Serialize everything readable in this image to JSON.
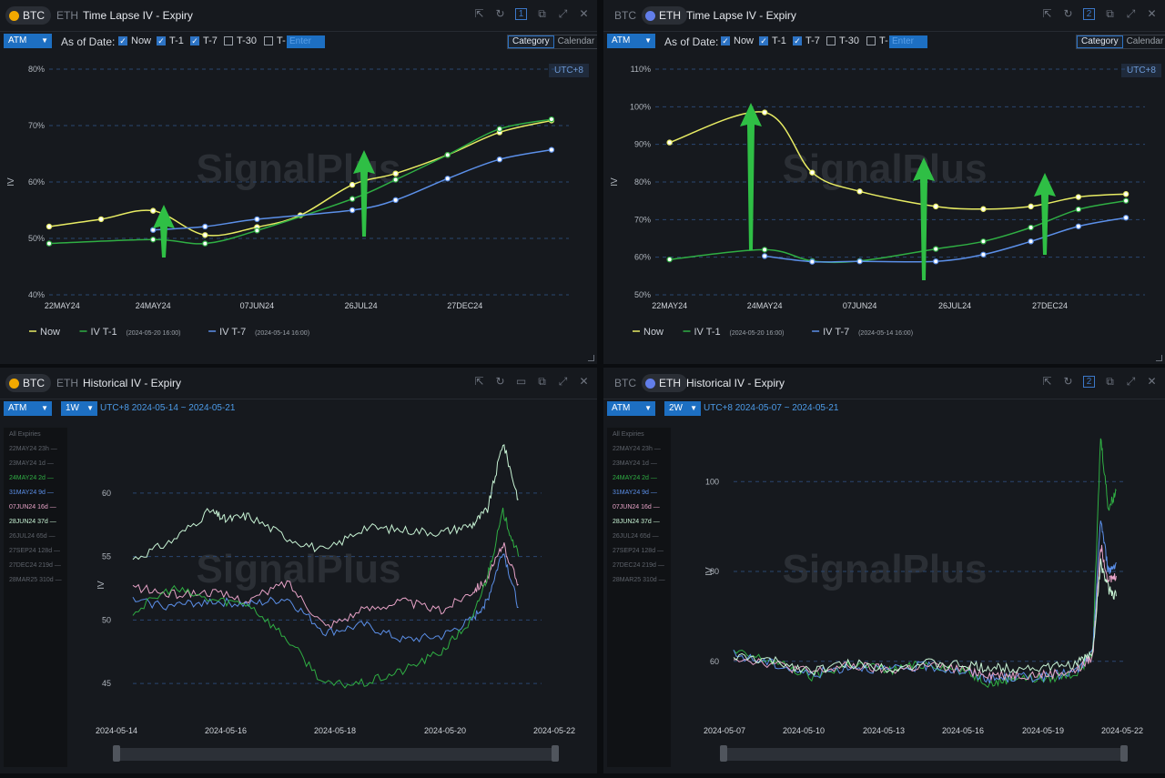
{
  "panels": [
    {
      "coins": [
        "BTC",
        "ETH"
      ],
      "active_coin": "BTC",
      "title": "Time Lapse IV - Expiry",
      "panel_number": "1",
      "selector": "ATM",
      "as_of_label": "As of Date:",
      "checkboxes": [
        {
          "label": "Now",
          "checked": true
        },
        {
          "label": "T-1",
          "checked": true
        },
        {
          "label": "T-7",
          "checked": true
        },
        {
          "label": "T-30",
          "checked": false
        },
        {
          "label": "T-",
          "checked": false
        }
      ],
      "date_placeholder": "Enter",
      "toggle": [
        "Category",
        "Calendar"
      ],
      "toggle_active": "Category",
      "timezone": "UTC+8",
      "watermark": "SignalPlus"
    },
    {
      "coins": [
        "BTC",
        "ETH"
      ],
      "active_coin": "ETH",
      "title": "Time Lapse IV - Expiry",
      "panel_number": "2",
      "selector": "ATM",
      "as_of_label": "As of Date:",
      "checkboxes": [
        {
          "label": "Now",
          "checked": true
        },
        {
          "label": "T-1",
          "checked": true
        },
        {
          "label": "T-7",
          "checked": true
        },
        {
          "label": "T-30",
          "checked": false
        },
        {
          "label": "T-",
          "checked": false
        }
      ],
      "date_placeholder": "Enter",
      "toggle": [
        "Category",
        "Calendar"
      ],
      "toggle_active": "Category",
      "timezone": "UTC+8",
      "watermark": "SignalPlus"
    },
    {
      "coins": [
        "BTC",
        "ETH"
      ],
      "active_coin": "BTC",
      "title": "Historical IV - Expiry",
      "selector": "ATM",
      "period": "1W",
      "range": "UTC+8 2024-05-14 ~ 2024-05-21",
      "expiry_header": "All Expiries",
      "expiries": [
        {
          "label": "22MAY24 23h",
          "color": "#5e636b"
        },
        {
          "label": "23MAY24 1d",
          "color": "#5e636b"
        },
        {
          "label": "24MAY24 2d",
          "color": "#2fae43"
        },
        {
          "label": "31MAY24 9d",
          "color": "#5b8fe8"
        },
        {
          "label": "07JUN24 16d",
          "color": "#e6a2c6"
        },
        {
          "label": "28JUN24 37d",
          "color": "#c7f3d4"
        },
        {
          "label": "26JUL24 65d",
          "color": "#5e636b"
        },
        {
          "label": "27SEP24 128d",
          "color": "#5e636b"
        },
        {
          "label": "27DEC24 219d",
          "color": "#5e636b"
        },
        {
          "label": "28MAR25 310d",
          "color": "#5e636b"
        }
      ],
      "watermark": "SignalPlus"
    },
    {
      "coins": [
        "BTC",
        "ETH"
      ],
      "active_coin": "ETH",
      "title": "Historical IV - Expiry",
      "panel_number": "2",
      "selector": "ATM",
      "period": "2W",
      "range": "UTC+8 2024-05-07 ~ 2024-05-21",
      "expiry_header": "All Expiries",
      "expiries": [
        {
          "label": "22MAY24 23h",
          "color": "#5e636b"
        },
        {
          "label": "23MAY24 1d",
          "color": "#5e636b"
        },
        {
          "label": "24MAY24 2d",
          "color": "#2fae43"
        },
        {
          "label": "31MAY24 9d",
          "color": "#5b8fe8"
        },
        {
          "label": "07JUN24 16d",
          "color": "#e6a2c6"
        },
        {
          "label": "28JUN24 37d",
          "color": "#c7f3d4"
        },
        {
          "label": "26JUL24 65d",
          "color": "#5e636b"
        },
        {
          "label": "27SEP24 128d",
          "color": "#5e636b"
        },
        {
          "label": "27DEC24 219d",
          "color": "#5e636b"
        },
        {
          "label": "28MAR25 310d",
          "color": "#5e636b"
        }
      ],
      "watermark": "SignalPlus"
    }
  ],
  "chart_data": [
    {
      "type": "line",
      "ylabel": "IV",
      "ylim": [
        40,
        80
      ],
      "yticks": [
        "40%",
        "50%",
        "60%",
        "70%",
        "80%"
      ],
      "xticks": [
        "22MAY24",
        "24MAY24",
        "07JUN24",
        "26JUL24",
        "27DEC24"
      ],
      "grid": true,
      "legend_position": "bottom-left",
      "series": [
        {
          "name": "Now",
          "color": "#e7eb63",
          "points": [
            [
              0,
              52.1
            ],
            [
              0.6,
              53.4
            ],
            [
              1.2,
              54.9
            ],
            [
              1.8,
              50.6
            ],
            [
              2.4,
              52.0
            ],
            [
              2.9,
              54.1
            ],
            [
              3.5,
              59.5
            ],
            [
              4.0,
              61.5
            ],
            [
              4.6,
              64.8
            ],
            [
              5.2,
              68.8
            ],
            [
              5.8,
              70.9
            ]
          ]
        },
        {
          "name": "IV T-1",
          "note": "(2024-05-20 16:00)",
          "color": "#2fae43",
          "points": [
            [
              0,
              49.1
            ],
            [
              1.2,
              49.8
            ],
            [
              1.8,
              49.1
            ],
            [
              2.4,
              51.4
            ],
            [
              3.5,
              57.0
            ],
            [
              4.0,
              60.4
            ],
            [
              4.6,
              64.8
            ],
            [
              5.2,
              69.4
            ],
            [
              5.8,
              71.1
            ]
          ]
        },
        {
          "name": "IV T-7",
          "note": "(2024-05-14 16:00)",
          "color": "#5b8fe8",
          "points": [
            [
              1.2,
              51.5
            ],
            [
              1.8,
              52.1
            ],
            [
              2.4,
              53.4
            ],
            [
              3.5,
              55.0
            ],
            [
              4.0,
              56.8
            ],
            [
              4.6,
              60.6
            ],
            [
              5.2,
              64.0
            ],
            [
              5.8,
              65.7
            ]
          ]
        }
      ]
    },
    {
      "type": "line",
      "ylabel": "IV",
      "ylim": [
        50,
        110
      ],
      "yticks": [
        "50%",
        "60%",
        "70%",
        "80%",
        "90%",
        "100%",
        "110%"
      ],
      "xticks": [
        "22MAY24",
        "24MAY24",
        "07JUN24",
        "26JUL24",
        "27DEC24"
      ],
      "grid": true,
      "legend_position": "bottom-left",
      "series": [
        {
          "name": "Now",
          "color": "#e7eb63",
          "points": [
            [
              0,
              90.5
            ],
            [
              1.0,
              98.5
            ],
            [
              1.5,
              82.5
            ],
            [
              2.0,
              77.5
            ],
            [
              2.8,
              73.5
            ],
            [
              3.3,
              72.8
            ],
            [
              3.8,
              73.5
            ],
            [
              4.3,
              76.0
            ],
            [
              4.8,
              76.8
            ]
          ]
        },
        {
          "name": "IV T-1",
          "note": "(2024-05-20 16:00)",
          "color": "#2fae43",
          "points": [
            [
              0,
              59.4
            ],
            [
              1.0,
              62.0
            ],
            [
              1.5,
              59.0
            ],
            [
              2.0,
              59.0
            ],
            [
              2.8,
              62.2
            ],
            [
              3.3,
              64.2
            ],
            [
              3.8,
              67.9
            ],
            [
              4.3,
              72.7
            ],
            [
              4.8,
              75.0
            ]
          ]
        },
        {
          "name": "IV T-7",
          "note": "(2024-05-14 16:00)",
          "color": "#5b8fe8",
          "points": [
            [
              1.0,
              60.3
            ],
            [
              1.5,
              58.8
            ],
            [
              2.0,
              58.9
            ],
            [
              2.8,
              58.9
            ],
            [
              3.3,
              60.7
            ],
            [
              3.8,
              64.2
            ],
            [
              4.3,
              68.2
            ],
            [
              4.8,
              70.5
            ]
          ]
        }
      ]
    },
    {
      "type": "line",
      "ylabel": "IV",
      "ylim": [
        42.5,
        63
      ],
      "yticks": [
        "45",
        "50",
        "55",
        "60"
      ],
      "xticks": [
        "2024-05-14",
        "2024-05-16",
        "2024-05-18",
        "2024-05-20",
        "2024-05-22"
      ],
      "grid": true,
      "series": [
        {
          "name": "28JUN24 37d",
          "color": "#c7f3d4",
          "points": [
            [
              0,
              54.8
            ],
            [
              0.5,
              56.2
            ],
            [
              1.0,
              58.6
            ],
            [
              1.2,
              57.9
            ],
            [
              1.5,
              58.2
            ],
            [
              2.0,
              56.5
            ],
            [
              2.5,
              55.4
            ],
            [
              3.0,
              57.3
            ],
            [
              3.5,
              57.1
            ],
            [
              4.0,
              56.9
            ],
            [
              4.4,
              57.5
            ],
            [
              4.6,
              58.7
            ],
            [
              4.8,
              64.0
            ],
            [
              5.0,
              59.5
            ]
          ]
        },
        {
          "name": "07JUN24 16d",
          "color": "#e6a2c6",
          "points": [
            [
              0,
              52.6
            ],
            [
              0.5,
              52.0
            ],
            [
              1.0,
              52.2
            ],
            [
              1.5,
              51.5
            ],
            [
              2.0,
              53.0
            ],
            [
              2.5,
              49.5
            ],
            [
              3.0,
              50.8
            ],
            [
              3.5,
              51.5
            ],
            [
              4.0,
              50.7
            ],
            [
              4.4,
              52.3
            ],
            [
              4.6,
              53.2
            ],
            [
              4.8,
              56.0
            ],
            [
              5.0,
              52.8
            ]
          ]
        },
        {
          "name": "31MAY24 9d",
          "color": "#5b8fe8",
          "points": [
            [
              0,
              51.5
            ],
            [
              0.5,
              51.1
            ],
            [
              1.0,
              51.5
            ],
            [
              1.5,
              51.2
            ],
            [
              2.0,
              51.7
            ],
            [
              2.5,
              49.0
            ],
            [
              3.0,
              49.6
            ],
            [
              3.5,
              48.4
            ],
            [
              4.0,
              48.7
            ],
            [
              4.4,
              50.0
            ],
            [
              4.6,
              51.6
            ],
            [
              4.8,
              55.5
            ],
            [
              5.0,
              51.0
            ]
          ]
        },
        {
          "name": "24MAY24 2d",
          "color": "#2fae43",
          "points": [
            [
              0,
              50.6
            ],
            [
              0.5,
              52.5
            ],
            [
              1.0,
              51.6
            ],
            [
              1.5,
              51.3
            ],
            [
              2.0,
              48.5
            ],
            [
              2.5,
              44.9
            ],
            [
              3.0,
              45.0
            ],
            [
              3.5,
              46.0
            ],
            [
              4.0,
              47.5
            ],
            [
              4.4,
              50.0
            ],
            [
              4.6,
              53.5
            ],
            [
              4.8,
              58.5
            ],
            [
              5.0,
              55.0
            ]
          ]
        }
      ]
    },
    {
      "type": "line",
      "ylabel": "IV",
      "ylim": [
        48,
        112
      ],
      "yticks": [
        "60",
        "80",
        "100"
      ],
      "xticks": [
        "2024-05-07",
        "2024-05-10",
        "2024-05-13",
        "2024-05-16",
        "2024-05-19",
        "2024-05-22"
      ],
      "grid": true,
      "series": [
        {
          "name": "24MAY24 2d",
          "color": "#2fae43",
          "points": [
            [
              0,
              62.0
            ],
            [
              0.5,
              60.0
            ],
            [
              1.0,
              56.5
            ],
            [
              1.5,
              59.5
            ],
            [
              2.0,
              58.0
            ],
            [
              2.5,
              59.5
            ],
            [
              3.0,
              57.5
            ],
            [
              3.3,
              55.0
            ],
            [
              3.6,
              56.5
            ],
            [
              4.0,
              56.0
            ],
            [
              4.4,
              57.5
            ],
            [
              4.6,
              62.0
            ],
            [
              4.7,
              110.0
            ],
            [
              4.8,
              94.0
            ],
            [
              4.9,
              98.0
            ]
          ]
        },
        {
          "name": "31MAY24 9d",
          "color": "#5b8fe8",
          "points": [
            [
              0,
              61.5
            ],
            [
              0.5,
              59.5
            ],
            [
              1.0,
              57.0
            ],
            [
              1.5,
              59.0
            ],
            [
              2.0,
              58.0
            ],
            [
              2.5,
              59.0
            ],
            [
              3.0,
              57.5
            ],
            [
              3.3,
              56.0
            ],
            [
              3.6,
              56.5
            ],
            [
              4.0,
              56.5
            ],
            [
              4.4,
              57.8
            ],
            [
              4.6,
              62.0
            ],
            [
              4.7,
              92.0
            ],
            [
              4.8,
              80.0
            ],
            [
              4.9,
              82.0
            ]
          ]
        },
        {
          "name": "07JUN24 16d",
          "color": "#e6a2c6",
          "points": [
            [
              0,
              61.0
            ],
            [
              0.5,
              59.5
            ],
            [
              1.0,
              57.5
            ],
            [
              1.5,
              59.0
            ],
            [
              2.0,
              58.0
            ],
            [
              2.5,
              59.0
            ],
            [
              3.0,
              58.0
            ],
            [
              3.3,
              57.0
            ],
            [
              3.6,
              57.0
            ],
            [
              4.0,
              57.0
            ],
            [
              4.4,
              58.0
            ],
            [
              4.6,
              61.0
            ],
            [
              4.7,
              86.0
            ],
            [
              4.8,
              78.0
            ],
            [
              4.9,
              79.0
            ]
          ]
        },
        {
          "name": "28JUN24 37d",
          "color": "#c7f3d4",
          "points": [
            [
              0,
              61.0
            ],
            [
              0.5,
              60.0
            ],
            [
              1.0,
              58.0
            ],
            [
              1.5,
              59.5
            ],
            [
              2.0,
              58.5
            ],
            [
              2.5,
              59.5
            ],
            [
              3.0,
              59.0
            ],
            [
              3.3,
              58.5
            ],
            [
              3.6,
              58.5
            ],
            [
              4.0,
              58.5
            ],
            [
              4.4,
              59.5
            ],
            [
              4.6,
              62.0
            ],
            [
              4.7,
              82.0
            ],
            [
              4.8,
              76.0
            ],
            [
              4.9,
              74.5
            ]
          ]
        }
      ]
    }
  ]
}
